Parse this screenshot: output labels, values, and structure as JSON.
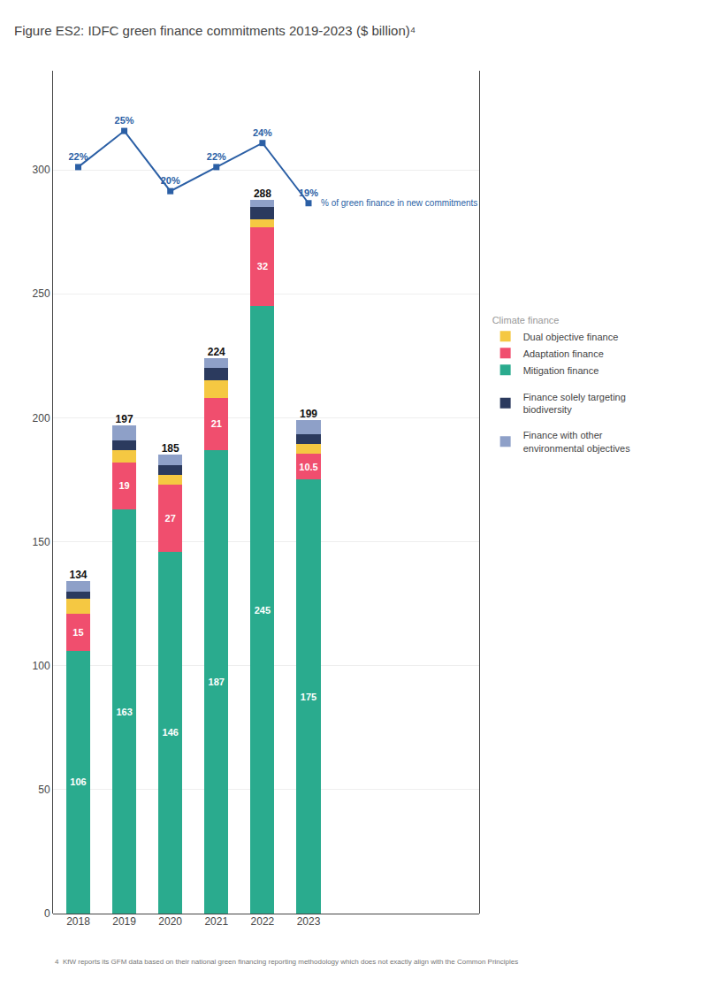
{
  "chart_data": {
    "type": "bar",
    "stacked": true,
    "title": "Figure ES2: IDFC green finance commitments 2019-2023 ($ billion)⁴",
    "categories": [
      "2018",
      "2019",
      "2020",
      "2021",
      "2022",
      "2023"
    ],
    "series": [
      {
        "name": "Mitigation finance",
        "color": "#2aab8e",
        "values": [
          106,
          163,
          146,
          187,
          245,
          175
        ],
        "data_labels": true,
        "legend_group": "Climate finance"
      },
      {
        "name": "Adaptation finance",
        "color": "#f04e6e",
        "values": [
          15,
          19,
          27,
          21,
          32,
          10.5
        ],
        "data_labels": true,
        "legend_group": "Climate finance"
      },
      {
        "name": "Dual objective finance",
        "color": "#f5c842",
        "values": [
          6,
          5,
          4,
          7,
          3,
          4
        ],
        "legend_group": "Climate finance"
      },
      {
        "name": "Finance solely targeting\nbiodiversity",
        "color": "#2b3a5e",
        "values": [
          3,
          4,
          4,
          5,
          5,
          4
        ]
      },
      {
        "name": "Finance with other\nenvironmental objectives",
        "color": "#8ea0c8",
        "values": [
          4,
          6,
          4,
          4,
          3,
          5.5
        ]
      },
      {
        "name": "% of green finance in new commitments",
        "type": "line",
        "axis": "y2",
        "color": "#2b5fa5",
        "marker": "square",
        "values": [
          22,
          25,
          20,
          22,
          24,
          19
        ],
        "value_labels": [
          "22%",
          "25%",
          "20%",
          "22%",
          "24%",
          "19%"
        ],
        "data_labels": true
      }
    ],
    "totals": [
      134,
      197,
      185,
      224,
      288,
      199
    ],
    "ylim": [
      0,
      340
    ],
    "yticks": [
      0,
      50,
      100,
      150,
      200,
      250,
      300
    ],
    "y2lim": [
      -40,
      30
    ],
    "y2ticks": [],
    "grid": true,
    "legend": "right",
    "annotations": [
      "4  KfW reports its GFM data based on their national green financing reporting methodology which does not exactly align with the Common Principles"
    ]
  }
}
